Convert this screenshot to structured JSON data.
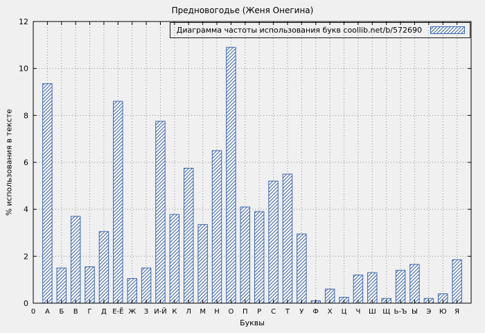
{
  "title": "Предновогодье (Женя Онегина)",
  "chart_data": {
    "type": "bar",
    "title": "Предновогодье (Женя Онегина)",
    "legend_label": "Диаграмма частоты использования букв coollib.net/b/572690",
    "legend_position": "top-right",
    "xlabel": "Буквы",
    "ylabel": "% использования в тексте",
    "origin_label": "0",
    "ylim": [
      0,
      12
    ],
    "yticks": [
      0,
      2,
      4,
      6,
      8,
      10,
      12
    ],
    "grid": true,
    "bar_color": "#3b67ad",
    "bar_fill_background": "#f7f7f7",
    "categories": [
      "А",
      "Б",
      "В",
      "Г",
      "Д",
      "Е-Ё",
      "Ж",
      "З",
      "И-Й",
      "К",
      "Л",
      "М",
      "Н",
      "О",
      "П",
      "Р",
      "С",
      "Т",
      "У",
      "Ф",
      "Х",
      "Ц",
      "Ч",
      "Ш",
      "Щ",
      "Ь-Ъ",
      "Ы",
      "Э",
      "Ю",
      "Я"
    ],
    "values": [
      9.35,
      1.5,
      3.7,
      1.55,
      3.05,
      8.6,
      1.05,
      1.5,
      7.75,
      3.78,
      5.75,
      3.35,
      6.5,
      10.9,
      4.1,
      3.9,
      5.2,
      5.5,
      2.95,
      0.1,
      0.6,
      0.25,
      1.2,
      1.3,
      0.2,
      1.4,
      1.65,
      0.2,
      0.4,
      1.85
    ]
  },
  "colors": {
    "background": "#f0f0f0",
    "axis": "#000000",
    "grid": "#8a8a8a",
    "bar": "#3b67ad"
  }
}
